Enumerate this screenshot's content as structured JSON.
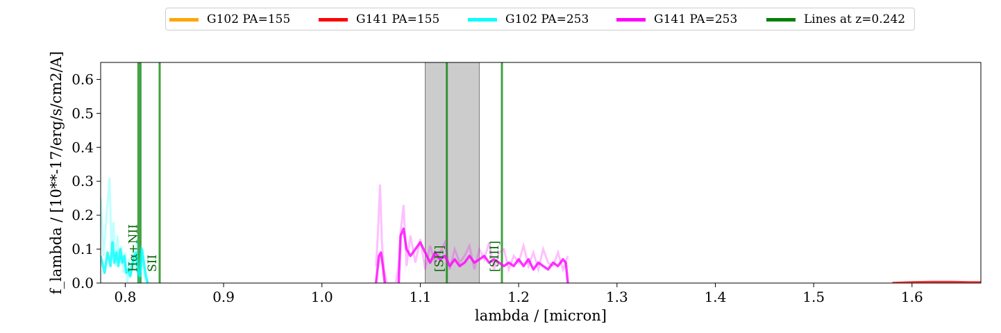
{
  "chart_data": {
    "type": "line",
    "xlabel": "lambda / [micron]",
    "ylabel": "f_lambda / [10**-17/erg/s/cm2/A]",
    "xlim": [
      0.775,
      1.67
    ],
    "ylim": [
      0.0,
      0.65
    ],
    "xticks": [
      "0.8",
      "0.9",
      "1.0",
      "1.1",
      "1.2",
      "1.3",
      "1.4",
      "1.5",
      "1.6"
    ],
    "yticks": [
      "0.0",
      "0.1",
      "0.2",
      "0.3",
      "0.4",
      "0.5",
      "0.6"
    ],
    "grid": false,
    "legend_placement": "top-center, outside plot",
    "legend": [
      {
        "label": "G102 PA=155",
        "color": "#ffa500"
      },
      {
        "label": "G141 PA=155",
        "color": "#ff0000"
      },
      {
        "label": "G102 PA=253",
        "color": "#00ffff"
      },
      {
        "label": "G141 PA=253",
        "color": "#ff00ff"
      },
      {
        "label": "Lines at z=0.242",
        "color": "#008000"
      }
    ],
    "shaded_region": {
      "x": [
        1.105,
        1.16
      ],
      "color": "#999999"
    },
    "emission_lines": [
      {
        "label": "Hα+NII",
        "x": 0.8155
      },
      {
        "label": "SII",
        "x": 0.835
      },
      {
        "label": "[SII]",
        "x": 1.127
      },
      {
        "label": "[SIII]",
        "x": 1.183
      }
    ],
    "series": [
      {
        "name": "G102 PA=253",
        "color": "#00ffff",
        "x": [
          0.775,
          0.779,
          0.782,
          0.785,
          0.787,
          0.789,
          0.791,
          0.793,
          0.795,
          0.797,
          0.799,
          0.801,
          0.803,
          0.805,
          0.807,
          0.809,
          0.811,
          0.813,
          0.815,
          0.817,
          0.819,
          0.821,
          0.823
        ],
        "y": [
          0.08,
          0.03,
          0.09,
          0.05,
          0.12,
          0.06,
          0.09,
          0.05,
          0.1,
          0.06,
          0.08,
          0.03,
          0.04,
          0.02,
          0.05,
          0.08,
          0.09,
          0.03,
          0.02,
          0.1,
          0.06,
          0.02,
          0.0
        ],
        "noisy_x": [
          0.775,
          0.778,
          0.781,
          0.784,
          0.786,
          0.788,
          0.79,
          0.792,
          0.794,
          0.796,
          0.798,
          0.8,
          0.802,
          0.804,
          0.806,
          0.808,
          0.81,
          0.812,
          0.814,
          0.816,
          0.818,
          0.82,
          0.823
        ],
        "noisy_y": [
          0.25,
          0.08,
          0.2,
          0.31,
          0.1,
          0.18,
          0.05,
          0.14,
          0.06,
          0.11,
          0.03,
          0.09,
          0.0,
          0.07,
          0.02,
          0.1,
          0.04,
          0.13,
          0.0,
          0.11,
          0.05,
          0.01,
          0.0
        ]
      },
      {
        "name": "G141 PA=253",
        "color": "#ff00ff",
        "x": [
          1.055,
          1.058,
          1.06,
          1.062,
          1.064,
          1.066,
          1.07,
          1.075,
          1.078,
          1.08,
          1.083,
          1.086,
          1.09,
          1.095,
          1.1,
          1.105,
          1.11,
          1.115,
          1.12,
          1.125,
          1.13,
          1.135,
          1.14,
          1.145,
          1.15,
          1.155,
          1.16,
          1.165,
          1.17,
          1.175,
          1.18,
          1.185,
          1.19,
          1.195,
          1.2,
          1.205,
          1.21,
          1.215,
          1.22,
          1.225,
          1.23,
          1.235,
          1.24,
          1.245,
          1.248,
          1.25
        ],
        "y": [
          0.0,
          0.08,
          0.09,
          0.05,
          0.0,
          -0.05,
          -0.1,
          -0.12,
          0.0,
          0.14,
          0.16,
          0.1,
          0.08,
          0.1,
          0.12,
          0.09,
          0.06,
          0.09,
          0.07,
          0.08,
          0.05,
          0.07,
          0.05,
          0.06,
          0.08,
          0.06,
          0.07,
          0.08,
          0.06,
          0.07,
          0.06,
          0.05,
          0.06,
          0.05,
          0.07,
          0.05,
          0.07,
          0.04,
          0.06,
          0.05,
          0.04,
          0.06,
          0.05,
          0.07,
          0.06,
          0.0
        ],
        "noisy_x": [
          1.055,
          1.057,
          1.059,
          1.061,
          1.063,
          1.066,
          1.07,
          1.075,
          1.078,
          1.08,
          1.083,
          1.086,
          1.09,
          1.095,
          1.1,
          1.105,
          1.11,
          1.115,
          1.12,
          1.125,
          1.13,
          1.135,
          1.14,
          1.145,
          1.15,
          1.155,
          1.16,
          1.165,
          1.17,
          1.175,
          1.18,
          1.185,
          1.19,
          1.195,
          1.2,
          1.205,
          1.21,
          1.215,
          1.22,
          1.225,
          1.23,
          1.235,
          1.24,
          1.245,
          1.25
        ],
        "noisy_y": [
          0.05,
          0.15,
          0.29,
          0.12,
          0.04,
          0.0,
          0.0,
          0.0,
          0.05,
          0.15,
          0.23,
          0.05,
          0.14,
          0.06,
          0.13,
          0.04,
          0.11,
          0.06,
          0.09,
          0.12,
          0.04,
          0.1,
          0.06,
          0.08,
          0.11,
          0.04,
          0.1,
          0.07,
          0.12,
          0.04,
          0.09,
          0.1,
          0.04,
          0.08,
          0.06,
          0.11,
          0.05,
          0.09,
          0.04,
          0.1,
          0.06,
          0.05,
          0.09,
          0.04,
          0.08
        ]
      },
      {
        "name": "G141 PA=155",
        "color": "#ff0000",
        "x": [
          1.58,
          1.6,
          1.62,
          1.64,
          1.66,
          1.67
        ],
        "y": [
          0.0,
          0.002,
          0.003,
          0.003,
          0.002,
          0.002
        ]
      }
    ]
  }
}
